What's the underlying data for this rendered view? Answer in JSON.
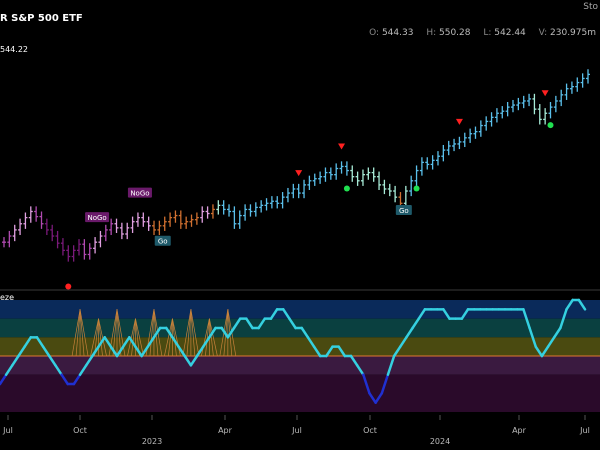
{
  "header": {
    "title": "R S&P 500 ETF",
    "logo_text": "Sto",
    "ohlc": [
      {
        "key": "O:",
        "val": "544.33"
      },
      {
        "key": "H:",
        "val": "550.28"
      },
      {
        "key": "L:",
        "val": "542.44"
      },
      {
        "key": "V:",
        "val": "230.975m"
      }
    ],
    "price_tag": "544.22",
    "oscillator_label": "eze"
  },
  "colors": {
    "strong_go": "#3a8fd8",
    "go": "#5bc0eb",
    "weak_go": "#a8ecd8",
    "strong_nogo": "#7a1a7a",
    "nogo": "#b04ab0",
    "weak_nogo": "#e0a0e0",
    "go_fading": "#d07030",
    "go_osc": "#35d0e0",
    "osc_weak": "#2030d0",
    "zero_line": "#e07830",
    "signal_down": "#ff2020",
    "signal_up": "#20e050"
  },
  "chart_data": [
    {
      "type": "ohlc",
      "title": "R S&P 500 ETF",
      "x_ticks": [
        "Jul",
        "Oct",
        "2023",
        "Apr",
        "Jul",
        "Oct",
        "2024",
        "Apr",
        "Jul"
      ],
      "ylim": [
        345,
        560
      ],
      "price_label_last": 544.22,
      "series": [
        {
          "name": "weekly_close",
          "values": [
            380,
            386,
            392,
            398,
            404,
            410,
            405,
            398,
            392,
            386,
            379,
            372,
            366,
            372,
            378,
            368,
            374,
            380,
            386,
            392,
            398,
            394,
            388,
            394,
            400,
            404,
            400,
            396,
            392,
            396,
            400,
            404,
            406,
            398,
            400,
            402,
            404,
            410,
            408,
            412,
            416,
            412,
            410,
            398,
            406,
            412,
            410,
            414,
            416,
            418,
            420,
            418,
            424,
            428,
            432,
            428,
            436,
            440,
            442,
            444,
            448,
            446,
            452,
            454,
            450,
            444,
            440,
            446,
            448,
            444,
            436,
            432,
            430,
            424,
            418,
            430,
            440,
            450,
            458,
            456,
            460,
            464,
            470,
            474,
            476,
            478,
            482,
            486,
            488,
            494,
            498,
            502,
            506,
            508,
            512,
            514,
            516,
            518,
            520,
            510,
            500,
            506,
            512,
            518,
            524,
            530,
            532,
            536,
            540,
            544
          ]
        },
        {
          "name": "color_state",
          "values": [
            "nogo",
            "nogo",
            "weak_nogo",
            "weak_nogo",
            "weak_nogo",
            "weak_nogo",
            "nogo",
            "nogo",
            "strong_nogo",
            "strong_nogo",
            "strong_nogo",
            "strong_nogo",
            "strong_nogo",
            "strong_nogo",
            "strong_nogo",
            "nogo",
            "nogo",
            "weak_nogo",
            "weak_nogo",
            "nogo",
            "nogo",
            "weak_nogo",
            "weak_nogo",
            "weak_nogo",
            "weak_nogo",
            "weak_nogo",
            "weak_nogo",
            "weak_nogo",
            "go_fading",
            "go_fading",
            "go_fading",
            "go_fading",
            "go_fading",
            "go_fading",
            "go_fading",
            "go_fading",
            "go_fading",
            "weak_nogo",
            "weak_nogo",
            "go_fading",
            "weak_go",
            "go",
            "go",
            "go",
            "go",
            "go",
            "go",
            "go",
            "go",
            "go",
            "go",
            "go",
            "go",
            "go",
            "go",
            "go",
            "go",
            "go",
            "go",
            "go",
            "go",
            "go",
            "go",
            "go",
            "go",
            "weak_go",
            "weak_go",
            "weak_go",
            "weak_go",
            "weak_go",
            "weak_go",
            "weak_go",
            "weak_go",
            "weak_go",
            "go_fading",
            "weak_go",
            "go",
            "go",
            "go",
            "go",
            "go",
            "go",
            "go",
            "go",
            "go",
            "go",
            "go",
            "go",
            "go",
            "go",
            "go",
            "go",
            "go",
            "go",
            "go",
            "go",
            "go",
            "go",
            "go",
            "weak_go",
            "weak_go",
            "weak_go",
            "go",
            "go",
            "go",
            "go",
            "go",
            "go",
            "go",
            "go"
          ]
        }
      ],
      "annotations": [
        {
          "text": "NoGo",
          "index": 17
        },
        {
          "text": "NoGo",
          "index": 25
        },
        {
          "text": "Go",
          "index": 30
        },
        {
          "text": "Go",
          "index": 75
        }
      ]
    },
    {
      "type": "line",
      "title": "eze",
      "ylim": [
        -6,
        6
      ],
      "zero_line": 0,
      "series": [
        {
          "name": "oscillator",
          "values": [
            -3,
            -2,
            -1,
            0,
            1,
            2,
            2,
            1,
            0,
            -1,
            -2,
            -3,
            -3,
            -2,
            -1,
            0,
            1,
            2,
            1,
            0,
            1,
            2,
            1,
            0,
            1,
            2,
            3,
            3,
            2,
            1,
            0,
            -1,
            0,
            1,
            2,
            3,
            3,
            2,
            3,
            4,
            4,
            3,
            3,
            4,
            4,
            5,
            5,
            4,
            3,
            3,
            2,
            1,
            0,
            0,
            1,
            1,
            0,
            0,
            -1,
            -2,
            -4,
            -5,
            -4,
            -2,
            0,
            1,
            2,
            3,
            4,
            5,
            5,
            5,
            5,
            4,
            4,
            4,
            5,
            5,
            5,
            5,
            5,
            5,
            5,
            5,
            5,
            5,
            3,
            1,
            0,
            1,
            2,
            3,
            5,
            6,
            6,
            5
          ]
        }
      ]
    }
  ]
}
